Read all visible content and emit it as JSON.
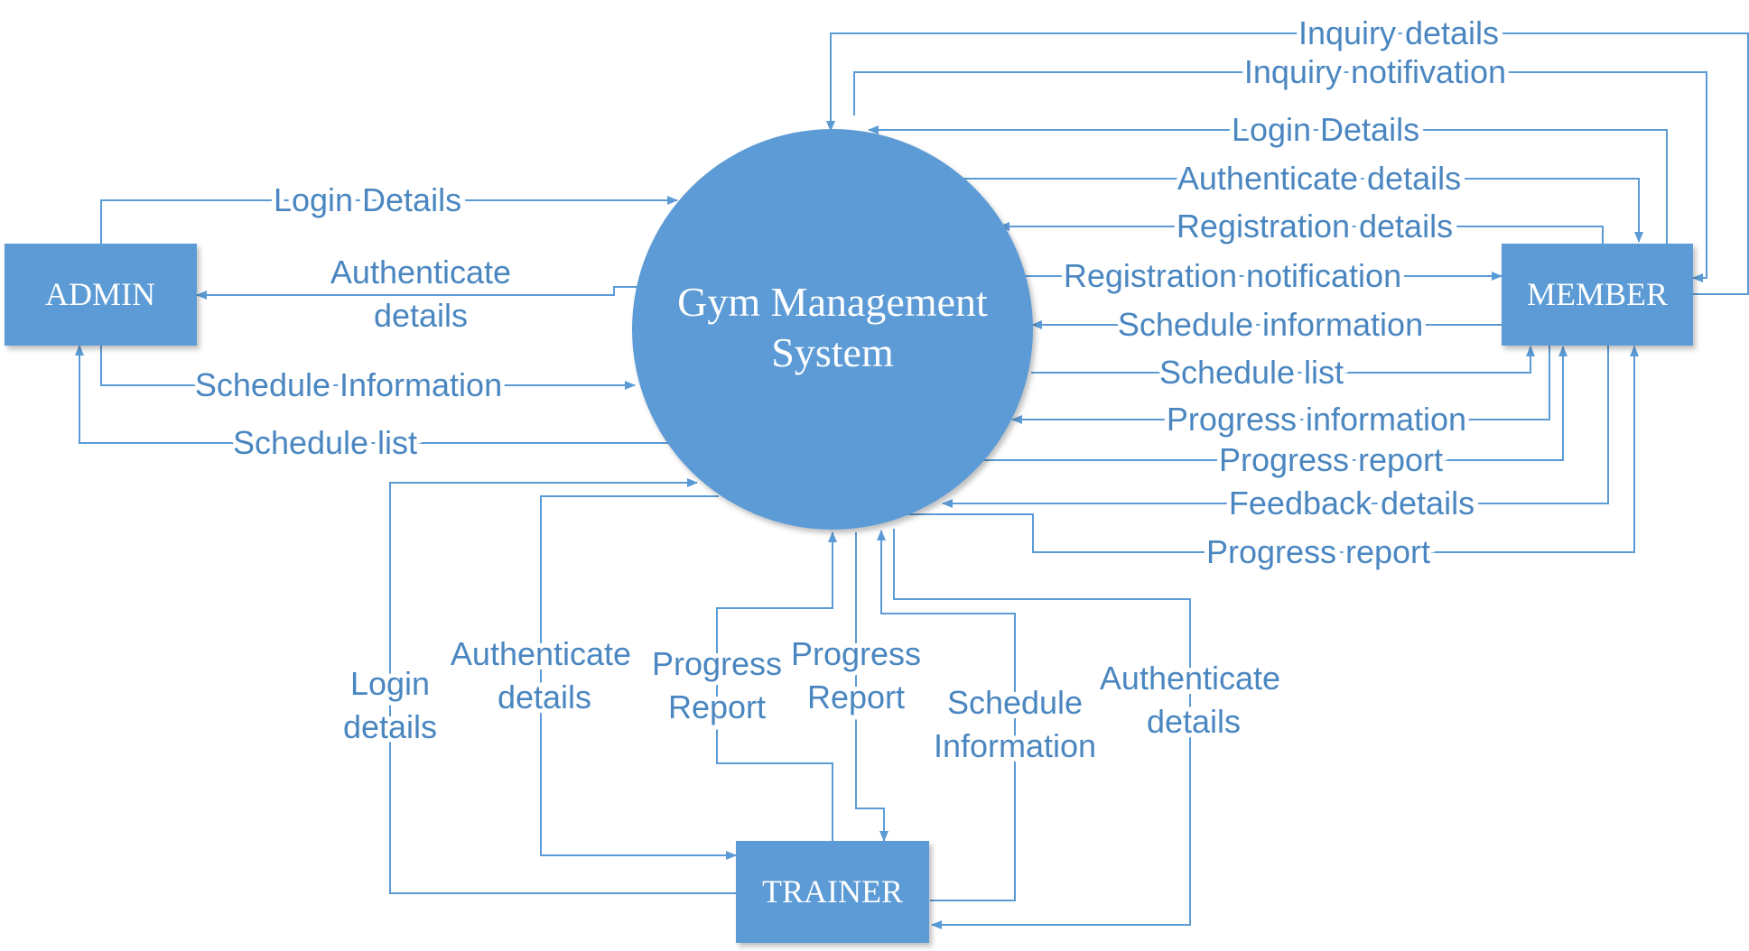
{
  "colors": {
    "shape_fill": "#5b9bd5",
    "line": "#5b9bd5",
    "label_text": "#4a86c0",
    "background": "#ffffff"
  },
  "nodes": {
    "process": {
      "line1": "Gym Management",
      "line2": "System"
    },
    "admin": "ADMIN",
    "member": "MEMBER",
    "trainer": "TRAINER"
  },
  "flows": {
    "admin_login": "Login Details",
    "admin_auth_1": "Authenticate",
    "admin_auth_2": "details",
    "admin_schedule_info": "Schedule Information",
    "admin_schedule_list": "Schedule list",
    "member_inquiry_details": "Inquiry details",
    "member_inquiry_notification": "Inquiry notifivation",
    "member_login": "Login Details",
    "member_auth": "Authenticate details",
    "member_registration": "Registration details",
    "member_registration_notification": "Registration notification",
    "member_schedule_info": "Schedule information",
    "member_schedule_list": "Schedule list",
    "member_progress_info": "Progress information",
    "member_progress_report": "Progress report",
    "member_feedback": "Feedback details",
    "member_progress_report_2": "Progress report",
    "trainer_login_1": "Login",
    "trainer_login_2": "details",
    "trainer_auth_1": "Authenticate",
    "trainer_auth_2": "details",
    "trainer_progress_a_1": "Progress",
    "trainer_progress_a_2": "Report",
    "trainer_progress_b_1": "Progress",
    "trainer_progress_b_2": "Report",
    "trainer_schedule_1": "Schedule",
    "trainer_schedule_2": "Information",
    "trainer_auth_out_1": "Authenticate",
    "trainer_auth_out_2": "details"
  }
}
